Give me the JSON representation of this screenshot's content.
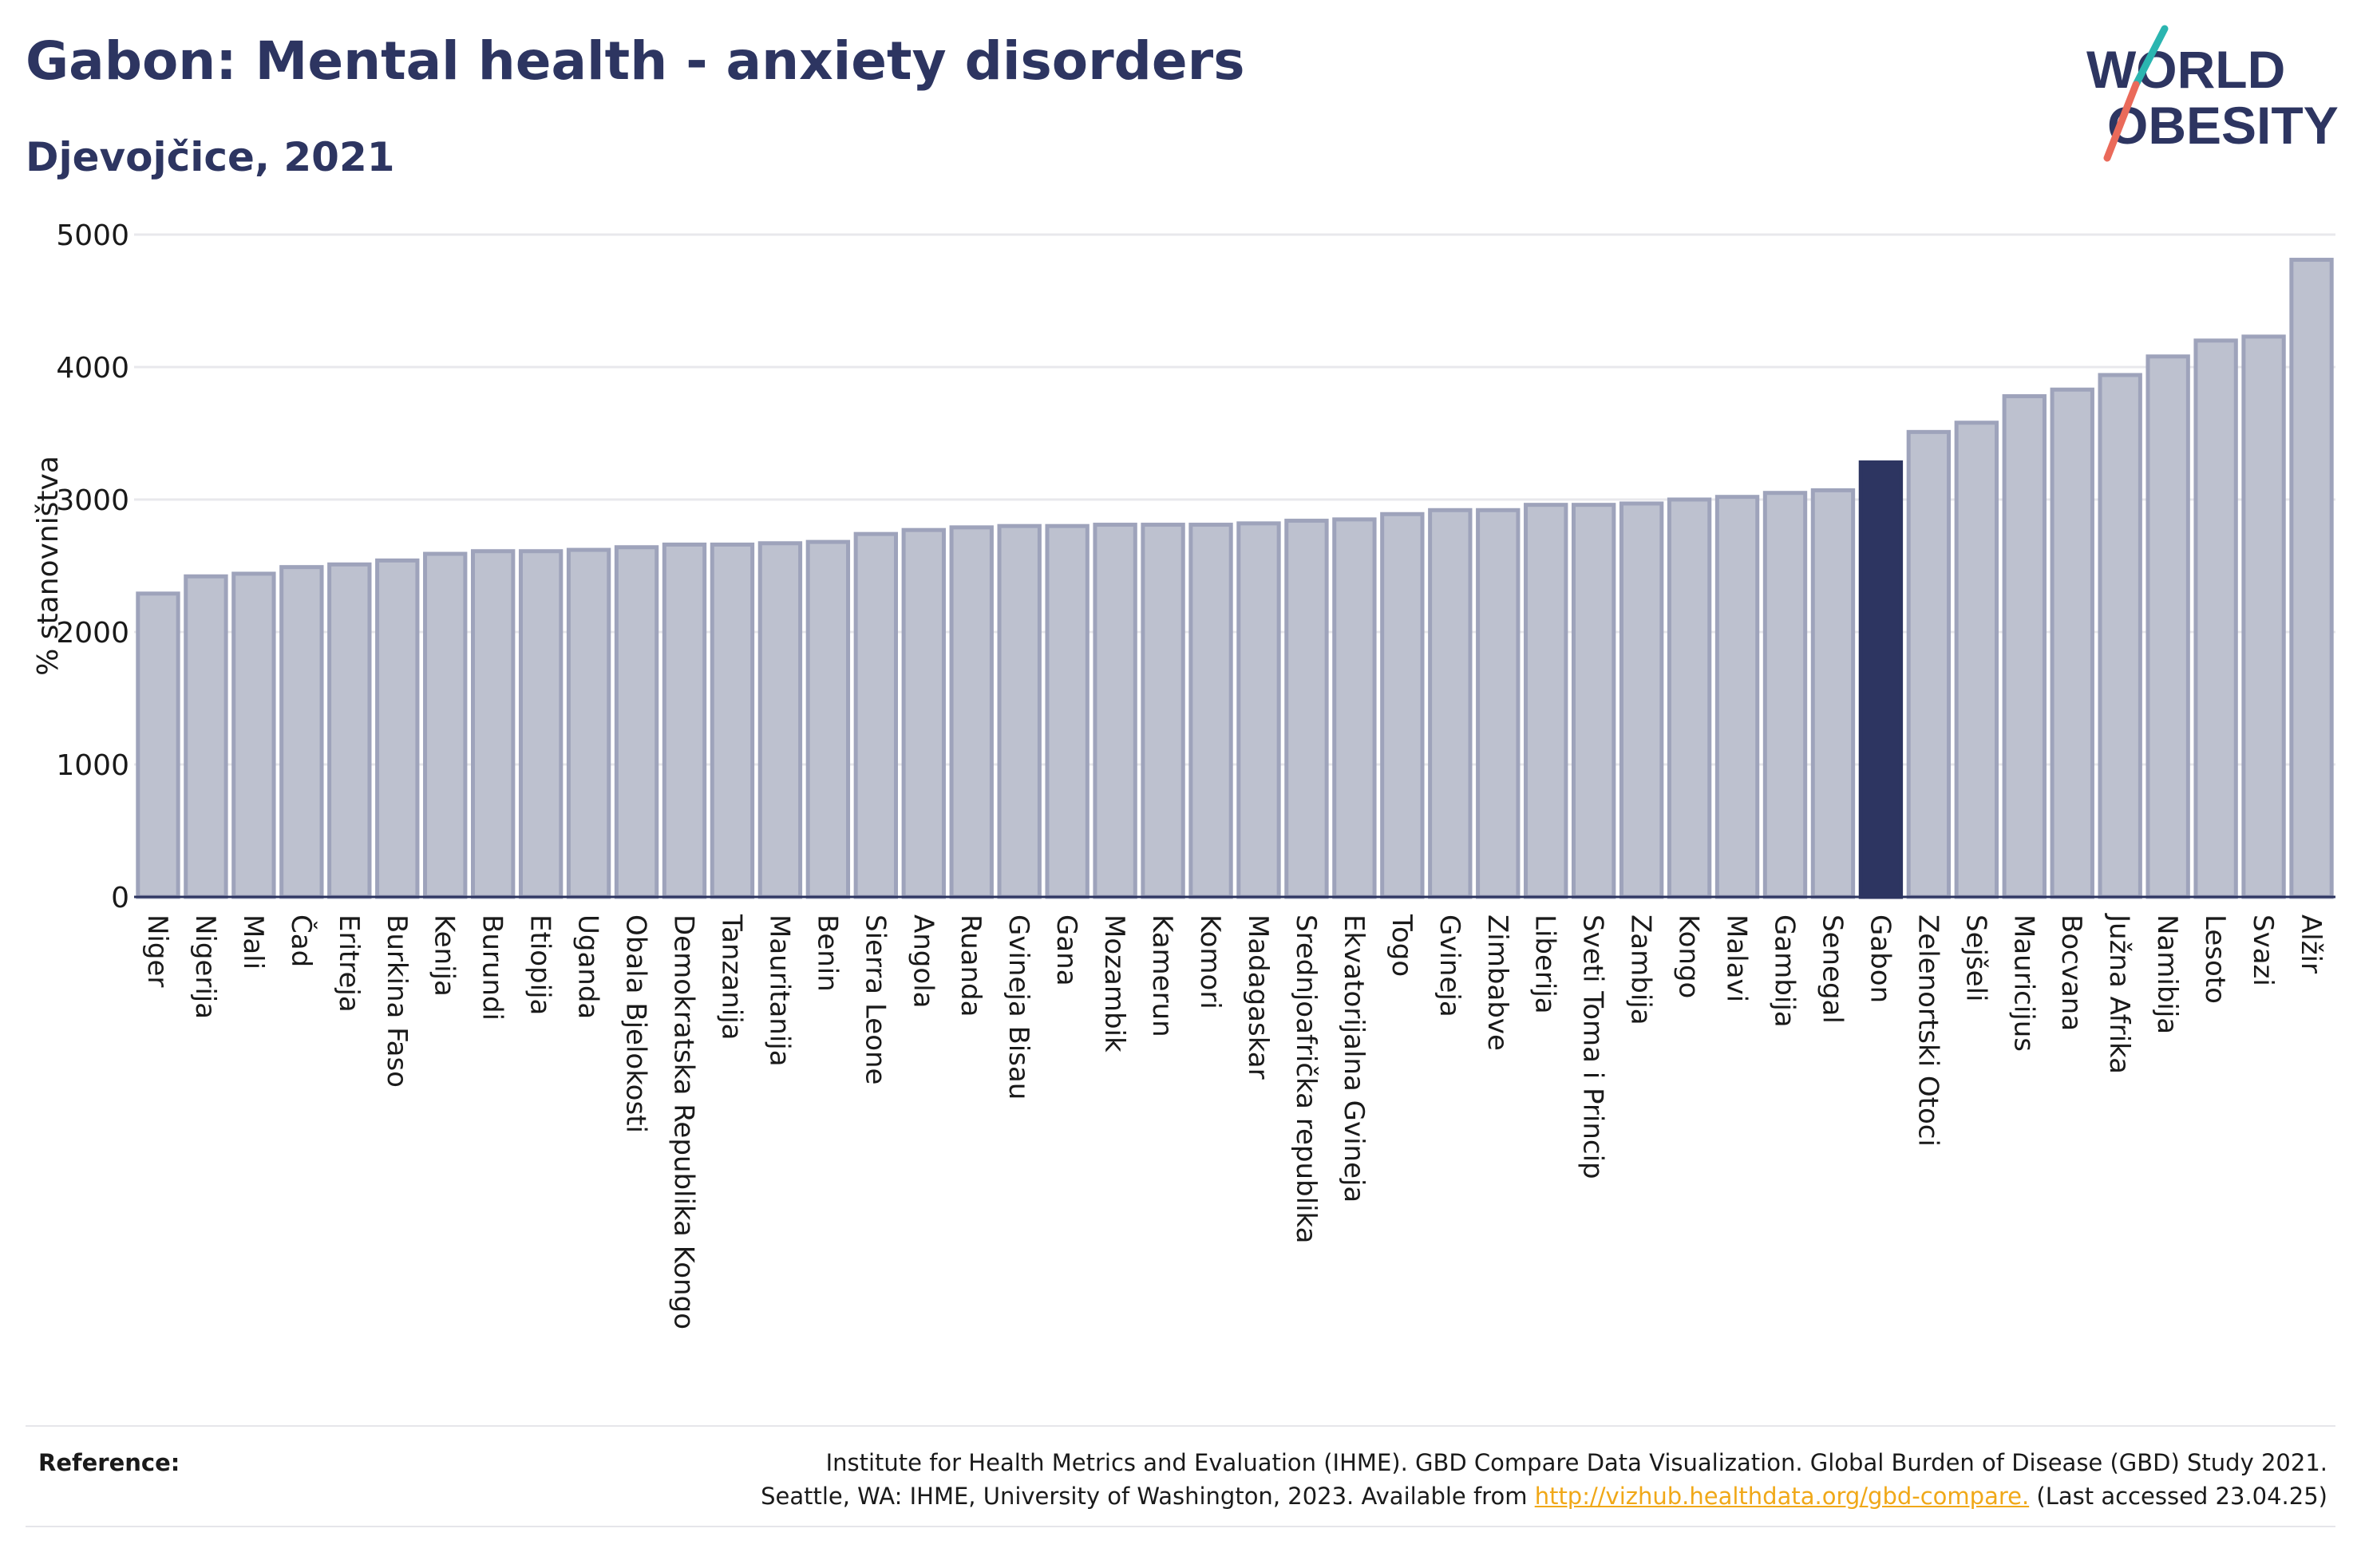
{
  "header": {
    "title": "Gabon: Mental health - anxiety disorders",
    "subtitle": "Djevojčice, 2021"
  },
  "logo": {
    "line1": "WORLD",
    "line2": "OBESITY",
    "colors": {
      "text": "#2d3561",
      "slash_teal": "#2bb5b0",
      "slash_coral": "#ea6a5a"
    }
  },
  "colors": {
    "bar_default": "#bdc1cf",
    "bar_default_outline": "#9ea3bb",
    "bar_highlight": "#2d3561",
    "grid": "#e8e8ec",
    "axis": "#2d3561",
    "text": "#1a1a1a"
  },
  "chart_data": {
    "type": "bar",
    "ylabel": "% stanovništva",
    "ylim": [
      0,
      5000
    ],
    "yticks": [
      0,
      1000,
      2000,
      3000,
      4000,
      5000
    ],
    "grid": true,
    "highlight": "Gabon",
    "categories": [
      "Niger",
      "Nigerija",
      "Mali",
      "Čad",
      "Eritreja",
      "Burkina Faso",
      "Kenija",
      "Burundi",
      "Etiopija",
      "Uganda",
      "Obala Bjelokosti",
      "Demokratska Republika Kongo",
      "Tanzanija",
      "Mauritanija",
      "Benin",
      "Sierra Leone",
      "Angola",
      "Ruanda",
      "Gvineja Bisau",
      "Gana",
      "Mozambik",
      "Kamerun",
      "Komori",
      "Madagaskar",
      "Srednjoafrička republika",
      "Ekvatorijalna Gvineja",
      "Togo",
      "Gvineja",
      "Zimbabve",
      "Liberija",
      "Sveti Toma i Princip",
      "Zambija",
      "Kongo",
      "Malavi",
      "Gambija",
      "Senegal",
      "Gabon",
      "Zelenortski Otoci",
      "Sejšeli",
      "Mauricijus",
      "Bocvana",
      "Južna Afrika",
      "Namibija",
      "Lesoto",
      "Svazi",
      "Alžir"
    ],
    "values": [
      2290,
      2420,
      2440,
      2490,
      2510,
      2540,
      2590,
      2610,
      2610,
      2620,
      2640,
      2660,
      2660,
      2670,
      2680,
      2740,
      2770,
      2790,
      2800,
      2800,
      2810,
      2810,
      2810,
      2820,
      2840,
      2850,
      2890,
      2920,
      2920,
      2960,
      2960,
      2970,
      3000,
      3020,
      3050,
      3070,
      3280,
      3510,
      3580,
      3780,
      3830,
      3940,
      4080,
      4200,
      4230,
      4810
    ]
  },
  "footer": {
    "reference_label": "Reference:",
    "reference_line1": "Institute for Health Metrics and Evaluation (IHME). GBD Compare Data Visualization. Global Burden of Disease (GBD) Study 2021.",
    "reference_line2_prefix": "Seattle, WA: IHME, University of Washington, 2023. Available from ",
    "reference_link": "http://vizhub.healthdata.org/gbd-compare.",
    "reference_line2_suffix": " (Last accessed 23.04.25)"
  }
}
